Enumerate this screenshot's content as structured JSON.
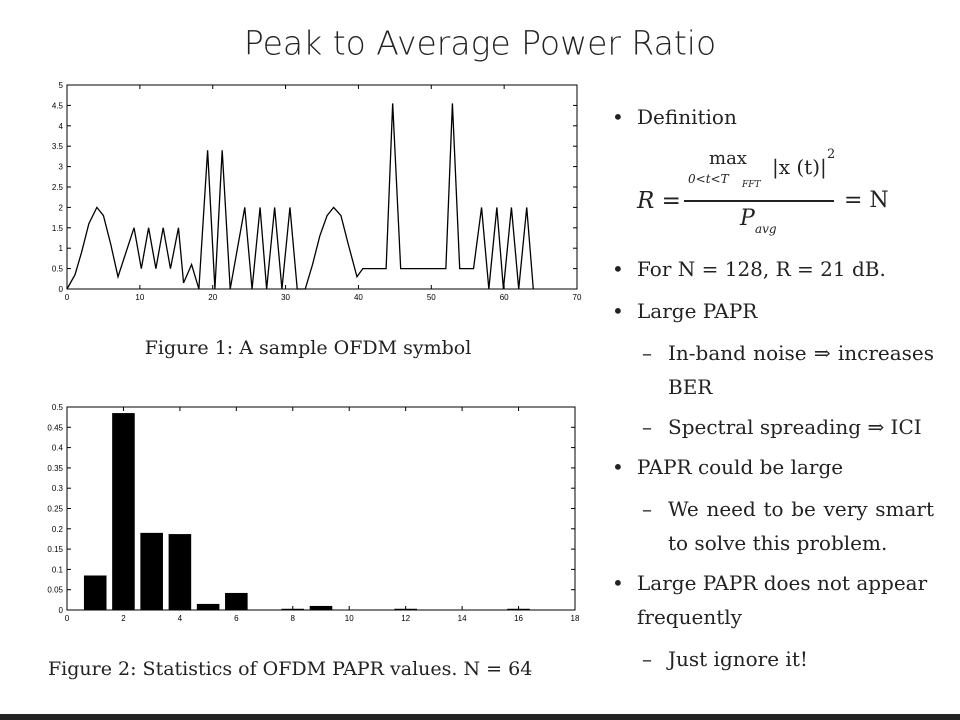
{
  "title": "Peak to Average Power Ratio",
  "chart_data": [
    {
      "type": "line",
      "caption": "Figure 1: A sample OFDM symbol",
      "color": "#000000",
      "x": [
        0,
        1.1,
        2,
        3,
        4.1,
        5,
        6,
        7,
        9.2,
        10.2,
        11.2,
        12.2,
        13.2,
        14.2,
        15.3,
        16,
        17.1,
        18.1,
        19.3,
        20.3,
        21.3,
        22.4,
        24.4,
        25.4,
        26.5,
        27.4,
        28.5,
        29.5,
        30.6,
        31.6,
        32.7,
        33.7,
        34.7,
        35.7,
        36.6,
        37.6,
        38.6,
        39.8,
        40.6,
        43.8,
        44.7,
        45.8,
        52,
        52.9,
        53.9,
        55.8,
        56.9,
        57.9,
        59,
        59.9,
        61,
        62,
        63.1,
        64
      ],
      "values": [
        0,
        0.35,
        0.9,
        1.6,
        2,
        1.8,
        1.1,
        0.3,
        1.5,
        0.5,
        1.5,
        0.5,
        1.5,
        0.5,
        1.5,
        0.15,
        0.6,
        0,
        3.4,
        0,
        3.4,
        0,
        2,
        0,
        2,
        0,
        2,
        0,
        2,
        0,
        0,
        0.6,
        1.3,
        1.8,
        2,
        1.8,
        1.1,
        0.3,
        0.5,
        0.5,
        4.55,
        0.5,
        0.5,
        4.55,
        0.5,
        0.5,
        2,
        0,
        2,
        0,
        2,
        0,
        2,
        0
      ],
      "xlim": [
        0,
        70
      ],
      "xticks": [
        0,
        10,
        20,
        30,
        40,
        50,
        60,
        70
      ],
      "ylim": [
        0,
        5
      ],
      "yticks": [
        0,
        0.5,
        1,
        1.5,
        2,
        2.5,
        3,
        3.5,
        4,
        4.5,
        5
      ]
    },
    {
      "type": "bar",
      "caption": "Figure 2: Statistics of OFDM PAPR values. N = 64",
      "color": "#000000",
      "x": [
        1,
        2,
        3,
        4,
        5,
        6,
        7,
        8,
        9,
        10,
        11,
        12,
        13,
        14,
        15,
        16
      ],
      "values": [
        0.085,
        0.485,
        0.19,
        0.187,
        0.015,
        0.042,
        0,
        0.003,
        0.01,
        0,
        0,
        0.003,
        0,
        0,
        0,
        0.003
      ],
      "xlim": [
        0,
        18
      ],
      "xticks": [
        0,
        2,
        4,
        6,
        8,
        10,
        12,
        14,
        16,
        18
      ],
      "ylim": [
        0,
        0.5
      ],
      "yticks": [
        0,
        0.05,
        0.1,
        0.15,
        0.2,
        0.25,
        0.3,
        0.35,
        0.4,
        0.45,
        0.5
      ]
    }
  ],
  "bullets": {
    "definition": "Definition",
    "formula": {
      "lhs": "R =",
      "max": "max",
      "range": "0<t<T",
      "range_sub": "FFT",
      "abs": "|x (t)|",
      "power": "2",
      "denom": "P",
      "denom_sub": "avg",
      "rhs": "= N"
    },
    "items": [
      {
        "text": "For N = 128, R = 21 dB.",
        "sub": []
      },
      {
        "text": "Large PAPR",
        "sub": [
          "In-band noise ⇒ increases BER",
          "Spectral spreading ⇒ ICI"
        ]
      },
      {
        "text": "PAPR could be large",
        "sub": [
          "We need to be very smart to solve this problem."
        ]
      },
      {
        "text": "Large PAPR does not appear frequently",
        "sub": [
          "Just ignore it!"
        ]
      }
    ]
  }
}
